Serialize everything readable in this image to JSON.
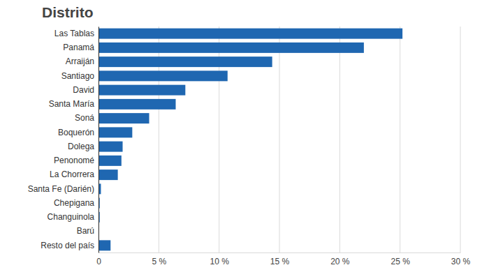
{
  "chart_data": {
    "type": "bar",
    "title": "Distrito",
    "orientation": "horizontal",
    "categories": [
      "Las Tablas",
      "Panamá",
      "Arraiján",
      "Santiago",
      "David",
      "Santa María",
      "Soná",
      "Boquerón",
      "Dolega",
      "Penonomé",
      "La Chorrera",
      "Santa Fe (Darién)",
      "Chepigana",
      "Changuinola",
      "Barú",
      "Resto del país"
    ],
    "values": [
      25.2,
      22.0,
      14.4,
      10.7,
      7.2,
      6.4,
      4.2,
      2.8,
      2.0,
      1.9,
      1.6,
      0.2,
      0.1,
      0.1,
      0,
      1.0
    ],
    "color": "#1f67b1",
    "xlim": [
      0,
      30
    ],
    "xticks": [
      0,
      {
        "value": 5,
        "label": "5 %"
      },
      {
        "value": 10,
        "label": "10 %"
      },
      {
        "value": 15,
        "label": "15 %"
      },
      {
        "value": 20,
        "label": "20 %"
      },
      {
        "value": 25,
        "label": "25 %"
      },
      {
        "value": 30,
        "label": "30 %"
      }
    ],
    "grid": true
  }
}
